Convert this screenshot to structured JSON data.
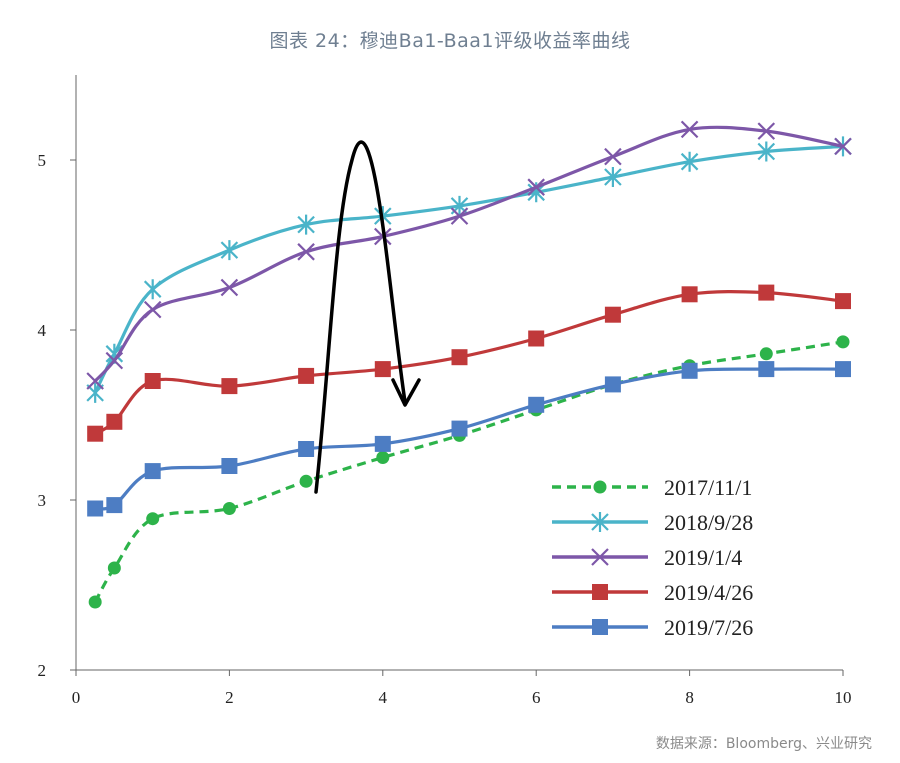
{
  "title": "图表 24：穆迪Ba1-Baa1评级收益率曲线",
  "source": "数据来源：Bloomberg、兴业研究",
  "chart_data": {
    "type": "line",
    "title": "图表 24：穆迪Ba1-Baa1评级收益率曲线",
    "xlabel": "",
    "ylabel": "",
    "xlim": [
      0,
      10
    ],
    "ylim": [
      2,
      5.5
    ],
    "x_ticks": [
      "0",
      "2",
      "4",
      "6",
      "8",
      "10"
    ],
    "y_ticks": [
      "2",
      "3",
      "4",
      "5"
    ],
    "grid": false,
    "legend_position": "bottom-right",
    "x": [
      0.25,
      0.5,
      1,
      2,
      3,
      4,
      5,
      6,
      7,
      8,
      9,
      10
    ],
    "series": [
      {
        "name": "2017/11/1",
        "color": "#2db34a",
        "style": "dashed",
        "marker": "circle",
        "values": [
          2.4,
          2.6,
          2.89,
          2.95,
          3.11,
          3.25,
          3.38,
          3.53,
          3.68,
          3.79,
          3.86,
          3.93
        ]
      },
      {
        "name": "2018/9/28",
        "color": "#4ab4c9",
        "style": "solid",
        "marker": "asterisk",
        "values": [
          3.63,
          3.86,
          4.24,
          4.47,
          4.62,
          4.67,
          4.73,
          4.81,
          4.9,
          4.99,
          5.05,
          5.08
        ]
      },
      {
        "name": "2019/1/4",
        "color": "#7d57a8",
        "style": "solid",
        "marker": "x",
        "values": [
          3.7,
          3.82,
          4.12,
          4.25,
          4.46,
          4.55,
          4.67,
          4.84,
          5.02,
          5.18,
          5.17,
          5.08
        ]
      },
      {
        "name": "2019/4/26",
        "color": "#c0393a",
        "style": "solid",
        "marker": "square",
        "values": [
          3.39,
          3.46,
          3.7,
          3.67,
          3.73,
          3.77,
          3.84,
          3.95,
          4.09,
          4.21,
          4.22,
          4.17
        ]
      },
      {
        "name": "2019/7/26",
        "color": "#4d7dc3",
        "style": "solid",
        "marker": "square",
        "values": [
          2.95,
          2.97,
          3.17,
          3.2,
          3.3,
          3.33,
          3.42,
          3.56,
          3.68,
          3.76,
          3.77,
          3.77
        ]
      }
    ]
  }
}
